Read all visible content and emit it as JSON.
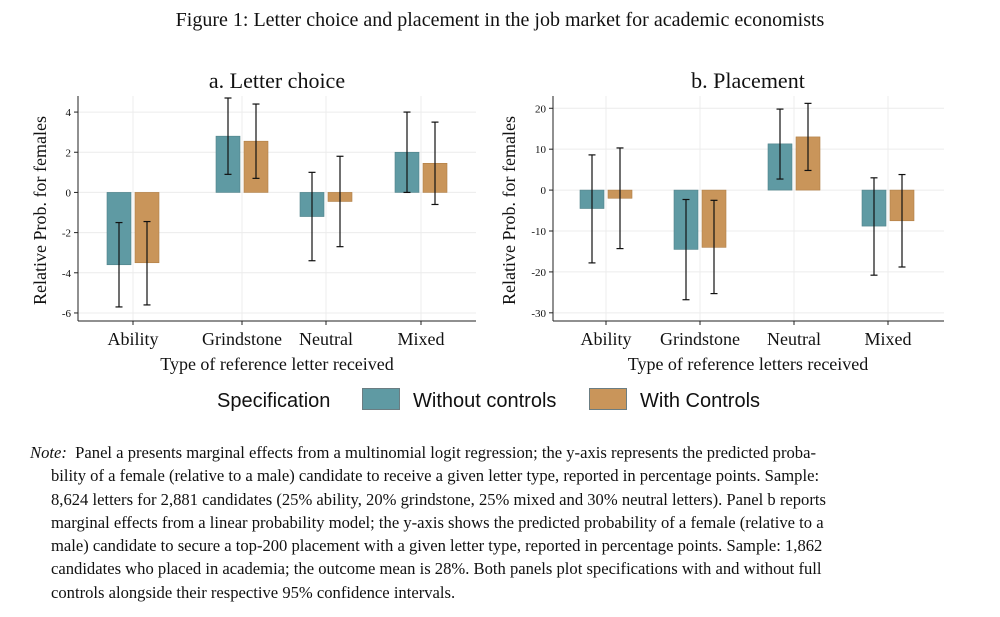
{
  "figure_title": "Figure 1: Letter choice and placement in the job market for academic economists",
  "legend": {
    "title": "Specification",
    "items": [
      {
        "label": "Without controls",
        "color": "#5f9aa3"
      },
      {
        "label": "With Controls",
        "color": "#c9955a"
      }
    ]
  },
  "note": {
    "prefix": "Note:",
    "lines": [
      "Panel a presents marginal effects from a multinomial logit regression; the y-axis represents the predicted proba-",
      "bility of a female (relative to a male) candidate to receive a given letter type, reported in percentage points. Sample:",
      "8,624 letters for 2,881 candidates (25% ability, 20% grindstone, 25% mixed and 30% neutral letters). Panel b reports",
      "marginal effects from a linear probability model; the y-axis shows the predicted probability of a female (relative to a",
      "male) candidate to secure a top-200 placement with a given letter type, reported in percentage points. Sample: 1,862",
      "candidates who placed in academia; the outcome mean is 28%. Both panels plot specifications with and without full",
      "controls alongside their respective 95% confidence intervals."
    ]
  },
  "chart_data": [
    {
      "type": "bar",
      "title": "a. Letter choice",
      "xlabel": "Type of reference letter received",
      "ylabel": "Relative Prob. for females",
      "categories": [
        "Ability",
        "Grindstone",
        "Neutral",
        "Mixed"
      ],
      "ylim": [
        -6.4,
        4.8
      ],
      "yticks": [
        -6,
        -4,
        -2,
        0,
        2,
        4
      ],
      "ytick_labels": [
        "-6",
        "-4",
        "-2",
        "0",
        "2",
        "4"
      ],
      "grid": true,
      "series": [
        {
          "name": "Without controls",
          "color": "#5f9aa3",
          "values": [
            -3.6,
            2.8,
            -1.2,
            2.0
          ],
          "ci_low": [
            -5.7,
            0.9,
            -3.4,
            0.0
          ],
          "ci_high": [
            -1.5,
            4.7,
            1.0,
            4.0
          ]
        },
        {
          "name": "With Controls",
          "color": "#c9955a",
          "values": [
            -3.5,
            2.55,
            -0.45,
            1.45
          ],
          "ci_low": [
            -5.6,
            0.7,
            -2.7,
            -0.6
          ],
          "ci_high": [
            -1.45,
            4.4,
            1.8,
            3.5
          ]
        }
      ]
    },
    {
      "type": "bar",
      "title": "b. Placement",
      "xlabel": "Type of reference letters received",
      "ylabel": "Relative Prob. for females",
      "categories": [
        "Ability",
        "Grindstone",
        "Neutral",
        "Mixed"
      ],
      "ylim": [
        -32,
        23
      ],
      "yticks": [
        -30,
        -20,
        -10,
        0,
        10,
        20
      ],
      "ytick_labels": [
        "-30",
        "-20",
        "-10",
        "0",
        "10",
        "20"
      ],
      "grid": true,
      "series": [
        {
          "name": "Without controls",
          "color": "#5f9aa3",
          "values": [
            -4.5,
            -14.5,
            11.3,
            -8.8
          ],
          "ci_low": [
            -17.8,
            -26.8,
            2.7,
            -20.8
          ],
          "ci_high": [
            8.6,
            -2.3,
            19.8,
            3.0
          ]
        },
        {
          "name": "With Controls",
          "color": "#c9955a",
          "values": [
            -2.0,
            -14.0,
            13.0,
            -7.5
          ],
          "ci_low": [
            -14.3,
            -25.3,
            4.8,
            -18.8
          ],
          "ci_high": [
            10.3,
            -2.5,
            21.2,
            3.8
          ]
        }
      ]
    }
  ]
}
